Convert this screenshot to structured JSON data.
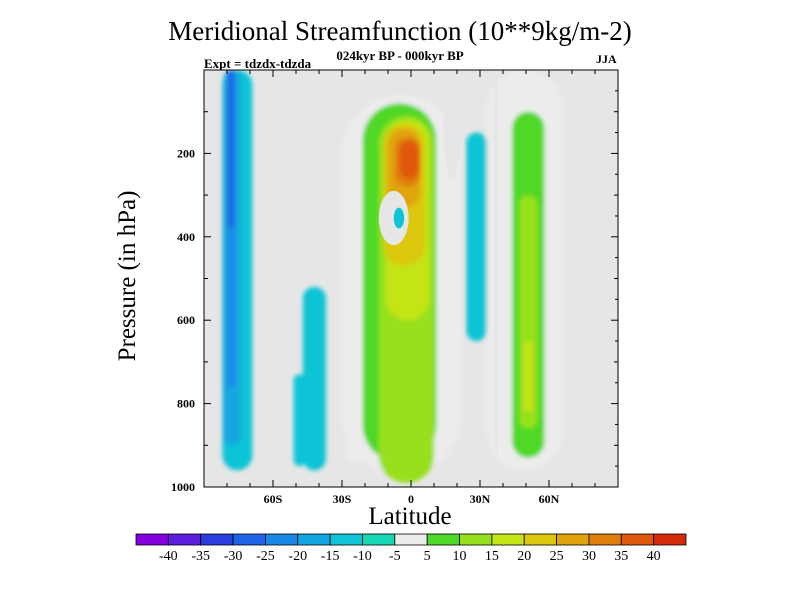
{
  "chart_data": {
    "type": "heatmap",
    "title": "Meridional Streamfunction (10**9kg/m-2)",
    "subtitle": "024kyr BP - 000kyr BP",
    "left_annotation": "Expt = tdzdx-tdzda",
    "right_annotation": "JJA",
    "xlabel": "Latitude",
    "ylabel": "Pressure (in hPa)",
    "xlim": [
      -90,
      90
    ],
    "ylim": [
      1000,
      0
    ],
    "x_ticks": [
      {
        "value": -60,
        "label": "60S"
      },
      {
        "value": -30,
        "label": "30S"
      },
      {
        "value": 0,
        "label": "0"
      },
      {
        "value": 30,
        "label": "30N"
      },
      {
        "value": 60,
        "label": "60N"
      }
    ],
    "y_ticks": [
      {
        "value": 200,
        "label": "200"
      },
      {
        "value": 400,
        "label": "400"
      },
      {
        "value": 600,
        "label": "600"
      },
      {
        "value": 800,
        "label": "800"
      },
      {
        "value": 1000,
        "label": "1000"
      }
    ],
    "colorbar": {
      "levels": [
        -40,
        -35,
        -30,
        -25,
        -20,
        -15,
        -10,
        -5,
        5,
        10,
        15,
        20,
        25,
        30,
        35,
        40
      ],
      "colors": [
        "#8400dc",
        "#5a1edc",
        "#2a3ee0",
        "#1f63e6",
        "#1b88e6",
        "#14a6e0",
        "#0ec4d6",
        "#14d8b4",
        "#ececec",
        "#4fd828",
        "#96e01e",
        "#c4e414",
        "#dcc80c",
        "#e0a40c",
        "#e07e0c",
        "#e0580c",
        "#d42a0c"
      ]
    },
    "field_value_ranges": [
      {
        "region": "southern high-latitude column near 75S",
        "lon_range": [
          -84,
          -66
        ],
        "pressure_range": [
          0,
          950
        ],
        "value_range": [
          -25,
          -10
        ]
      },
      {
        "region": "southern midlatitude lower cell near 43S",
        "lon_range": [
          -50,
          -35
        ],
        "pressure_range": [
          520,
          950
        ],
        "value_range": [
          -10,
          -5
        ]
      },
      {
        "region": "tropical upper maximum near 3S",
        "lon_range": [
          -15,
          12
        ],
        "pressure_range": [
          100,
          500
        ],
        "value_range": [
          5,
          40
        ]
      },
      {
        "region": "tropical column near 5N",
        "lon_range": [
          -15,
          25
        ],
        "pressure_range": [
          0,
          990
        ],
        "value_range": [
          5,
          25
        ]
      },
      {
        "region": "northern column near 50N",
        "lon_range": [
          35,
          65
        ],
        "pressure_range": [
          0,
          950
        ],
        "value_range": [
          5,
          20
        ]
      },
      {
        "region": "southern tropical negative patch near 5S",
        "lon_range": [
          -8,
          -2
        ],
        "pressure_range": [
          330,
          380
        ],
        "value_range": [
          -10,
          -5
        ]
      },
      {
        "region": "northern tropical negative column near 30N",
        "lon_range": [
          23,
          35
        ],
        "pressure_range": [
          150,
          650
        ],
        "value_range": [
          -10,
          -5
        ]
      }
    ]
  }
}
